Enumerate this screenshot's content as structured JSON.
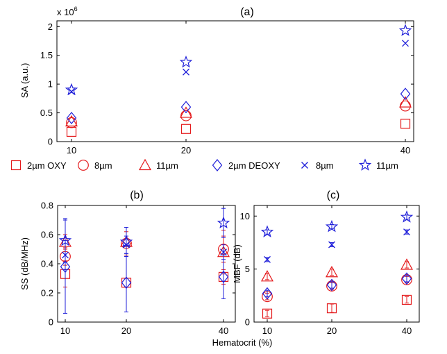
{
  "colors": {
    "red": "#e41a1c",
    "blue": "#1f1fd9"
  },
  "legend": [
    {
      "label": "2µm OXY",
      "marker": "square",
      "color": "red"
    },
    {
      "label": "8µm",
      "marker": "circle",
      "color": "red"
    },
    {
      "label": "11µm",
      "marker": "triangle",
      "color": "red"
    },
    {
      "label": "2µm DEOXY",
      "marker": "diamond",
      "color": "blue"
    },
    {
      "label": "8µm",
      "marker": "x",
      "color": "blue"
    },
    {
      "label": "11µm",
      "marker": "star",
      "color": "blue"
    }
  ],
  "shared_xlabel": "Hematocrit (%)",
  "chart_data": [
    {
      "type": "scatter",
      "title": "(a)",
      "ylabel": "SA (a.u.)",
      "multiplier": "x 10",
      "multiplier_exp": "6",
      "x": [
        "10",
        "20",
        "40"
      ],
      "xlim": [
        7,
        47
      ],
      "ylim": [
        0,
        2.1
      ],
      "yticks": [
        0,
        0.5,
        1,
        1.5,
        2
      ],
      "ytick_labels": [
        "0",
        "0.5",
        "1",
        "1.5",
        "2"
      ],
      "series": [
        {
          "marker": "square",
          "color": "red",
          "values": [
            0.17,
            0.22,
            0.31
          ]
        },
        {
          "marker": "circle",
          "color": "red",
          "values": [
            0.33,
            0.45,
            0.62
          ]
        },
        {
          "marker": "triangle",
          "color": "red",
          "values": [
            0.35,
            0.5,
            0.68
          ]
        },
        {
          "marker": "diamond",
          "color": "blue",
          "values": [
            0.41,
            0.6,
            0.83
          ]
        },
        {
          "marker": "x",
          "color": "blue",
          "values": [
            0.87,
            1.21,
            1.71
          ]
        },
        {
          "marker": "star",
          "color": "blue",
          "values": [
            0.9,
            1.38,
            1.93
          ]
        }
      ]
    },
    {
      "type": "scatter",
      "title": "(b)",
      "ylabel": "SS (dB/MHz)",
      "x": [
        "10",
        "20",
        "40"
      ],
      "xlim": [
        7,
        47
      ],
      "ylim": [
        0,
        0.8
      ],
      "yticks": [
        0,
        0.2,
        0.4,
        0.6,
        0.8
      ],
      "ytick_labels": [
        "0",
        "0.2",
        "0.4",
        "0.6",
        "0.8"
      ],
      "series": [
        {
          "marker": "square",
          "color": "red",
          "values": [
            0.33,
            0.27,
            0.31
          ],
          "err": [
            0.09,
            0.03,
            0.05
          ]
        },
        {
          "marker": "circle",
          "color": "red",
          "values": [
            0.45,
            0.54,
            0.5
          ],
          "err": [
            0.06,
            0.08,
            0.09
          ]
        },
        {
          "marker": "triangle",
          "color": "red",
          "values": [
            0.55,
            0.55,
            0.48
          ],
          "err": [
            0.05,
            0.1,
            0.15
          ]
        },
        {
          "marker": "diamond",
          "color": "blue",
          "values": [
            0.38,
            0.27,
            0.31
          ],
          "err": [
            0.32,
            0.2,
            0.15
          ]
        },
        {
          "marker": "x",
          "color": "blue",
          "values": [
            0.46,
            0.53,
            0.48
          ],
          "err": [
            0.1,
            0.06,
            0.05
          ]
        },
        {
          "marker": "star",
          "color": "blue",
          "values": [
            0.56,
            0.55,
            0.68
          ],
          "err": [
            0.15,
            0.1,
            0.1
          ]
        }
      ]
    },
    {
      "type": "scatter",
      "title": "(c)",
      "ylabel": "MBF (dB)",
      "x": [
        "10",
        "20",
        "40"
      ],
      "xlim": [
        7,
        47
      ],
      "ylim": [
        0,
        11
      ],
      "yticks": [
        0,
        5,
        10
      ],
      "ytick_labels": [
        "0",
        "5",
        "10"
      ],
      "series": [
        {
          "marker": "square",
          "color": "red",
          "values": [
            0.8,
            1.3,
            2.1
          ],
          "err": [
            0.3,
            0.4,
            0.3
          ]
        },
        {
          "marker": "circle",
          "color": "red",
          "values": [
            2.4,
            3.4,
            4.0
          ],
          "err": [
            0.3,
            0.3,
            0.3
          ]
        },
        {
          "marker": "triangle",
          "color": "red",
          "values": [
            4.3,
            4.7,
            5.4
          ],
          "err": [
            0.3,
            0.3,
            0.3
          ]
        },
        {
          "marker": "diamond",
          "color": "blue",
          "values": [
            2.7,
            3.5,
            4.1
          ],
          "err": [
            0.3,
            0.3,
            0.3
          ]
        },
        {
          "marker": "x",
          "color": "blue",
          "values": [
            5.9,
            7.3,
            8.5
          ],
          "err": [
            0.2,
            0.2,
            0.2
          ]
        },
        {
          "marker": "star",
          "color": "blue",
          "values": [
            8.5,
            9.0,
            9.9
          ],
          "err": [
            0.2,
            0.2,
            0.2
          ]
        }
      ]
    }
  ]
}
